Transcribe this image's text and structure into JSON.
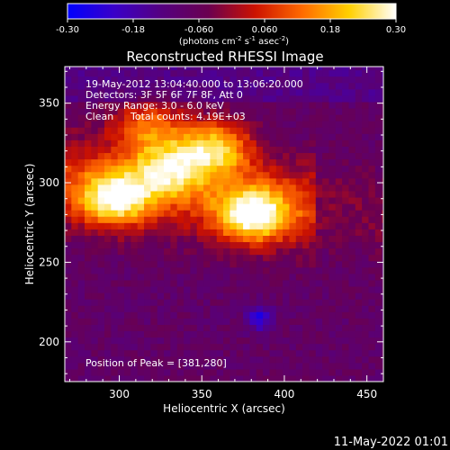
{
  "window": {
    "footer_timestamp": "11-May-2022 01:01"
  },
  "chart_data": {
    "type": "heatmap",
    "title": "Reconstructed RHESSI Image",
    "xlabel": "Heliocentric X (arcsec)",
    "ylabel": "Heliocentric Y (arcsec)",
    "xlim": [
      267,
      460
    ],
    "ylim": [
      175,
      373
    ],
    "x_ticks": [
      300,
      350,
      400,
      450
    ],
    "y_ticks": [
      200,
      250,
      300,
      350
    ],
    "colorbar": {
      "range": [
        -0.3,
        0.3
      ],
      "ticks": [
        "-0.30",
        "-0.18",
        "-0.060",
        "0.060",
        "0.18",
        "0.30"
      ],
      "unit_parts": [
        "(photons cm",
        "-2",
        " s",
        "-1",
        " asec",
        "-2",
        ")"
      ],
      "colors": [
        "#0000ff",
        "#3a00c8",
        "#550080",
        "#6a0050",
        "#cc1200",
        "#ff6a00",
        "#ffd000",
        "#ffffff"
      ]
    },
    "overlay": {
      "line1": "19-May-2012 13:04:40.000 to 13:06:20.000",
      "line2": "Detectors: 3F 5F 6F 7F 8F, Att 0",
      "line3": "Energy Range: 3.0 - 6.0 keV",
      "line4_a": "Clean",
      "line4_b": "Total counts: 4.19E+03",
      "peak": "Position of Peak = [381,280]"
    },
    "peak_position": [
      381,
      280
    ],
    "sources": [
      {
        "x": 381,
        "y": 280,
        "peak": 0.3
      },
      {
        "x": 297,
        "y": 290,
        "peak": 0.27
      },
      {
        "x": 358,
        "y": 322,
        "peak": 0.24
      },
      {
        "x": 330,
        "y": 308,
        "peak": 0.2
      },
      {
        "x": 318,
        "y": 335,
        "peak": 0.16
      }
    ],
    "background_level": -0.08,
    "min_spot": {
      "x": 385,
      "y": 215,
      "value": -0.24
    }
  }
}
